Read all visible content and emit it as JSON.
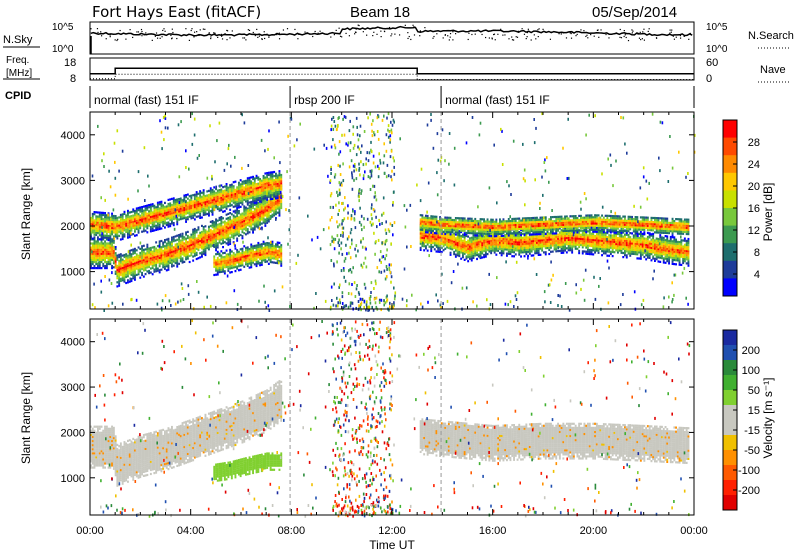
{
  "header": {
    "title": "Fort Hays East (fitACF)",
    "beam": "Beam 18",
    "date": "05/Sep/2014"
  },
  "panels": {
    "nsky_label": "N.Sky",
    "nsky_ticks": [
      "10^5",
      "10^0"
    ],
    "nsearch_label": "N.Search",
    "nsearch_ticks": [
      "10^5",
      "10^0"
    ],
    "freq_label_1": "Freq.",
    "freq_label_2": "[MHz]",
    "freq_ticks": [
      "18",
      "8"
    ],
    "nave_label": "Nave",
    "nave_ticks": [
      "60",
      "0"
    ],
    "cpid_label": "CPID",
    "cpid_segments": [
      {
        "label": "normal (fast) 151 IF",
        "start": 0.0,
        "end": 7.95
      },
      {
        "label": "rbsp 200 IF",
        "start": 7.95,
        "end": 13.95
      },
      {
        "label": "normal (fast) 151 IF",
        "start": 13.95,
        "end": 24.0
      }
    ]
  },
  "colorbars": {
    "power": {
      "label": "Power [dB]",
      "ticks": [
        "28",
        "24",
        "20",
        "16",
        "12",
        "8",
        "4"
      ],
      "colors": [
        "#ff0000",
        "#ff4a00",
        "#ff8a00",
        "#ffc800",
        "#c8e000",
        "#78c83c",
        "#3c9a50",
        "#1e6e6e",
        "#1e3c9a",
        "#0000ff"
      ]
    },
    "velocity": {
      "label": "Velocity [m s⁻¹]",
      "ticks": [
        "200",
        "100",
        "50",
        "15",
        "-15",
        "-50",
        "-100",
        "-200"
      ],
      "colors": [
        "#1a2aa0",
        "#2050b0",
        "#2a8a3a",
        "#40b030",
        "#80d030",
        "#c8c8c0",
        "#c8c8c0",
        "#f0c000",
        "#ff9000",
        "#ff5a00",
        "#ff2000",
        "#e00000"
      ]
    }
  },
  "axes": {
    "ylabel": "Slant Range [km]",
    "xlabel": "Time UT",
    "yticks": [
      "4000",
      "3000",
      "2000",
      "1000"
    ],
    "xticks": [
      "00:00",
      "04:00",
      "08:00",
      "12:00",
      "16:00",
      "20:00",
      "00:00"
    ]
  },
  "chart_data": {
    "type": "heatmap",
    "x_range_hours": [
      0,
      24
    ],
    "y_range_km": [
      180,
      4500
    ],
    "power_bands": [
      {
        "name": "lower band A",
        "t": [
          0,
          0.9,
          1.05,
          2,
          3,
          4,
          5,
          6,
          7,
          7.6
        ],
        "range_km": [
          1450,
          1450,
          1050,
          1250,
          1400,
          1600,
          1850,
          2100,
          2400,
          2650
        ],
        "width_km": 350
      },
      {
        "name": "upper band A",
        "t": [
          0,
          1,
          2,
          3,
          4,
          5,
          6,
          7,
          7.6
        ],
        "range_km": [
          2050,
          2000,
          2150,
          2300,
          2450,
          2600,
          2750,
          2900,
          2950
        ],
        "width_km": 300
      },
      {
        "name": "island",
        "t": [
          4.9,
          5.5,
          6.2,
          7.0,
          7.6
        ],
        "range_km": [
          1200,
          1250,
          1350,
          1450,
          1400
        ],
        "width_km": 250
      },
      {
        "name": "band B",
        "t": [
          13.1,
          14,
          15,
          16,
          17,
          18,
          19,
          20,
          21,
          22,
          23,
          23.8
        ],
        "range_km": [
          1800,
          1750,
          1550,
          1700,
          1650,
          1700,
          1750,
          1700,
          1650,
          1600,
          1500,
          1450
        ],
        "width_km": 300
      },
      {
        "name": "upper band B",
        "t": [
          13.1,
          14,
          16,
          18,
          20,
          22,
          23.8
        ],
        "range_km": [
          2100,
          2050,
          2000,
          2050,
          2100,
          2050,
          2000
        ],
        "width_km": 200
      }
    ],
    "velocity_regions": [
      {
        "name": "ground scatter A",
        "t": [
          0,
          0.9,
          1.05,
          2,
          3,
          4,
          5,
          6,
          7,
          7.6
        ],
        "range_km": [
          1700,
          1700,
          1300,
          1500,
          1650,
          1850,
          2050,
          2250,
          2500,
          2750
        ],
        "width_km": 900,
        "velocity_ms": 0
      },
      {
        "name": "ground scatter B",
        "t": [
          13.1,
          14,
          16,
          18,
          20,
          22,
          23.8
        ],
        "range_km": [
          1950,
          1900,
          1800,
          1850,
          1850,
          1800,
          1750
        ],
        "width_km": 800,
        "velocity_ms": 0
      },
      {
        "name": "positive island",
        "t": [
          4.9,
          5.5,
          6.2,
          7.0,
          7.6
        ],
        "range_km": [
          1150,
          1200,
          1300,
          1400,
          1400
        ],
        "width_km": 400,
        "velocity_ms": 40
      }
    ]
  }
}
